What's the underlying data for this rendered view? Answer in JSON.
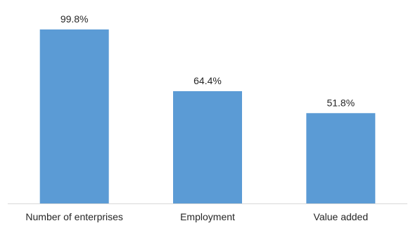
{
  "chart_data": {
    "type": "bar",
    "categories": [
      "Number of enterprises",
      "Employment",
      "Value added"
    ],
    "values": [
      99.8,
      64.4,
      51.8
    ],
    "data_labels": [
      "99.8%",
      "64.4%",
      "51.8%"
    ],
    "title": "",
    "xlabel": "",
    "ylabel": "",
    "ylim": [
      0,
      100
    ],
    "grid": false,
    "legend": "none",
    "colors": {
      "bar": "#5B9BD5",
      "axis": "#D9D9D9",
      "text": "#262626"
    }
  }
}
